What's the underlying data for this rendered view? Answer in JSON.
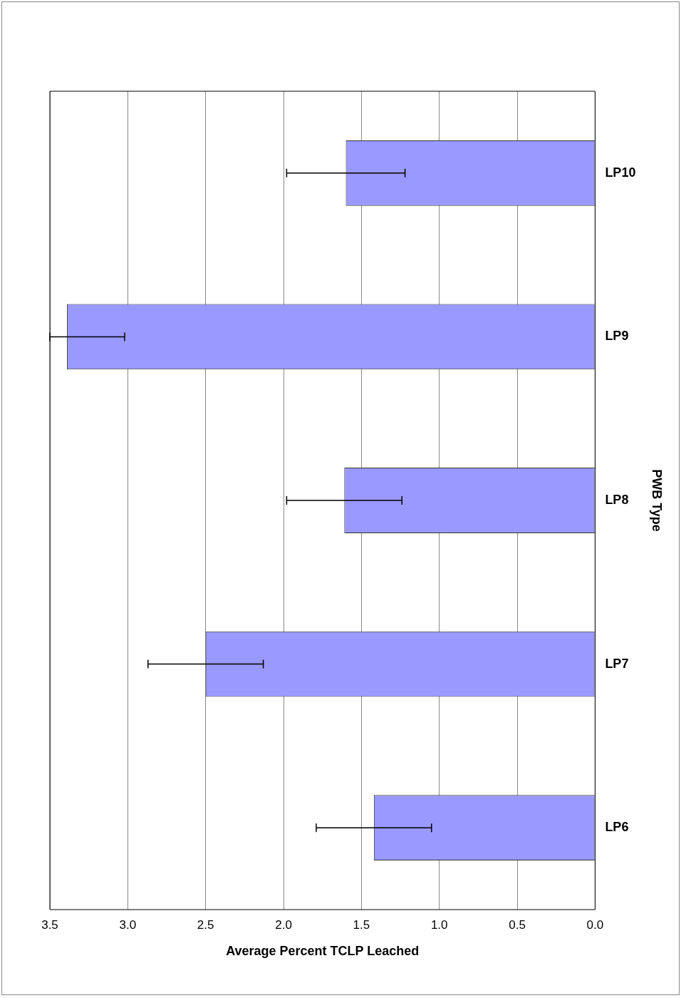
{
  "chart_data": {
    "type": "bar",
    "orientation": "horizontal",
    "xlabel": "Average Percent TCLP Leached",
    "ylabel": "PWB Type",
    "categories": [
      "LP10",
      "LP9",
      "LP8",
      "LP7",
      "LP6"
    ],
    "values": [
      1.6,
      3.39,
      1.61,
      2.5,
      1.42
    ],
    "errors": [
      0.38,
      [
        3.02,
        3.5
      ],
      0.37,
      0.37,
      0.37
    ],
    "color": "#9999ff",
    "xlim": [
      3.5,
      0
    ],
    "xticks": [
      {
        "value": 3.5,
        "label": "3.5"
      },
      {
        "value": 3,
        "label": "3.0"
      },
      {
        "value": 2.5,
        "label": "2.5"
      },
      {
        "value": 2,
        "label": "2.0"
      },
      {
        "value": 1.5,
        "label": "1.5"
      },
      {
        "value": 1,
        "label": "1.0"
      },
      {
        "value": 0.5,
        "label": "0.5"
      },
      {
        "value": 0,
        "label": "0.0"
      }
    ],
    "grid": "x"
  }
}
